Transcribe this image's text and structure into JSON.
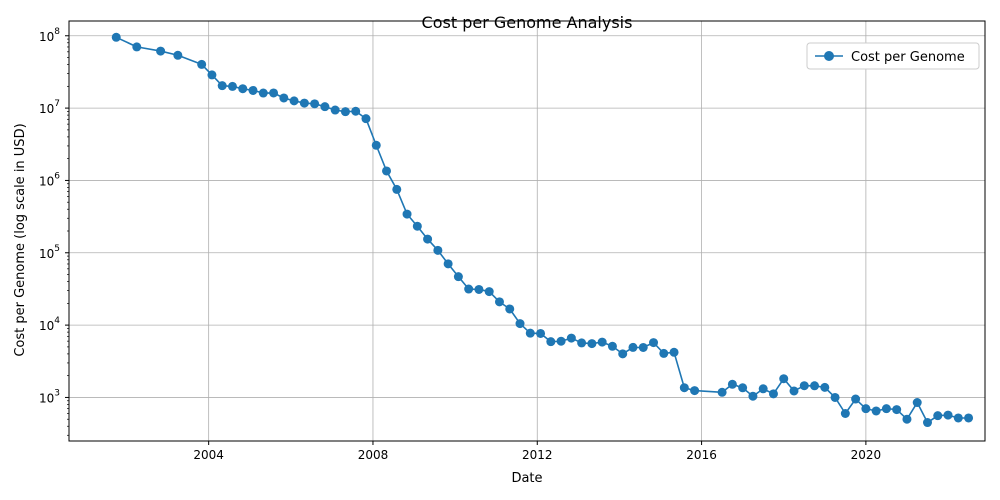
{
  "chart_data": {
    "type": "line",
    "title": "Cost per Genome Analysis",
    "xlabel": "Date",
    "ylabel": "Cost per Genome (log scale in USD)",
    "yscale": "log",
    "xlim": [
      2000.6,
      2022.9
    ],
    "ylim": [
      250,
      160000000
    ],
    "x_ticks": [
      {
        "value": 2004,
        "label": "2004"
      },
      {
        "value": 2008,
        "label": "2008"
      },
      {
        "value": 2012,
        "label": "2012"
      },
      {
        "value": 2016,
        "label": "2016"
      },
      {
        "value": 2020,
        "label": "2020"
      }
    ],
    "y_ticks": [
      {
        "value": 1000,
        "base": "10",
        "exp": "3"
      },
      {
        "value": 10000,
        "base": "10",
        "exp": "4"
      },
      {
        "value": 100000,
        "base": "10",
        "exp": "5"
      },
      {
        "value": 1000000,
        "base": "10",
        "exp": "6"
      },
      {
        "value": 10000000,
        "base": "10",
        "exp": "7"
      },
      {
        "value": 100000000,
        "base": "10",
        "exp": "8"
      }
    ],
    "grid": true,
    "legend_position": "top-right",
    "color": "#1f77b4",
    "series": [
      {
        "name": "Cost per Genome",
        "x": [
          2001.75,
          2002.25,
          2002.83,
          2003.25,
          2003.83,
          2004.08,
          2004.33,
          2004.58,
          2004.83,
          2005.08,
          2005.33,
          2005.58,
          2005.83,
          2006.08,
          2006.33,
          2006.58,
          2006.83,
          2007.08,
          2007.33,
          2007.58,
          2007.83,
          2008.08,
          2008.33,
          2008.58,
          2008.83,
          2009.08,
          2009.33,
          2009.58,
          2009.83,
          2010.08,
          2010.33,
          2010.58,
          2010.83,
          2011.08,
          2011.33,
          2011.58,
          2011.83,
          2012.08,
          2012.33,
          2012.58,
          2012.83,
          2013.08,
          2013.33,
          2013.58,
          2013.83,
          2014.08,
          2014.33,
          2014.58,
          2014.83,
          2015.08,
          2015.33,
          2015.58,
          2015.83,
          2016.5,
          2016.75,
          2017.0,
          2017.25,
          2017.5,
          2017.75,
          2018.0,
          2018.25,
          2018.5,
          2018.75,
          2019.0,
          2019.25,
          2019.5,
          2019.75,
          2020.0,
          2020.25,
          2020.5,
          2020.75,
          2021.0,
          2021.25,
          2021.5,
          2021.75,
          2022.0,
          2022.25,
          2022.5
        ],
        "y": [
          95263072,
          70175437,
          61448422,
          53751684,
          40157554,
          28780376,
          20442576,
          19934346,
          18519312,
          17534675,
          16159699,
          16180224,
          13801124,
          12585659,
          11732535,
          11455315,
          10474556,
          9408739,
          8927342,
          9047003,
          7147571,
          3063820,
          1352982,
          752080,
          342502,
          232735,
          154714,
          108065,
          70333,
          46774,
          31512,
          31125,
          29092,
          20963,
          16712,
          10497,
          7743,
          7666,
          5901,
          5985,
          6618,
          5671,
          5550,
          5826,
          5096,
          4008,
          4920,
          4905,
          5731,
          4066,
          4208,
          1363,
          1245,
          1178,
          1521,
          1359,
          1040,
          1317,
          1121,
          1815,
          1230,
          1453,
          1450,
          1378,
          1000,
          600,
          950,
          700,
          650,
          700,
          680,
          500,
          850,
          450,
          560,
          570,
          520,
          520
        ]
      }
    ]
  }
}
